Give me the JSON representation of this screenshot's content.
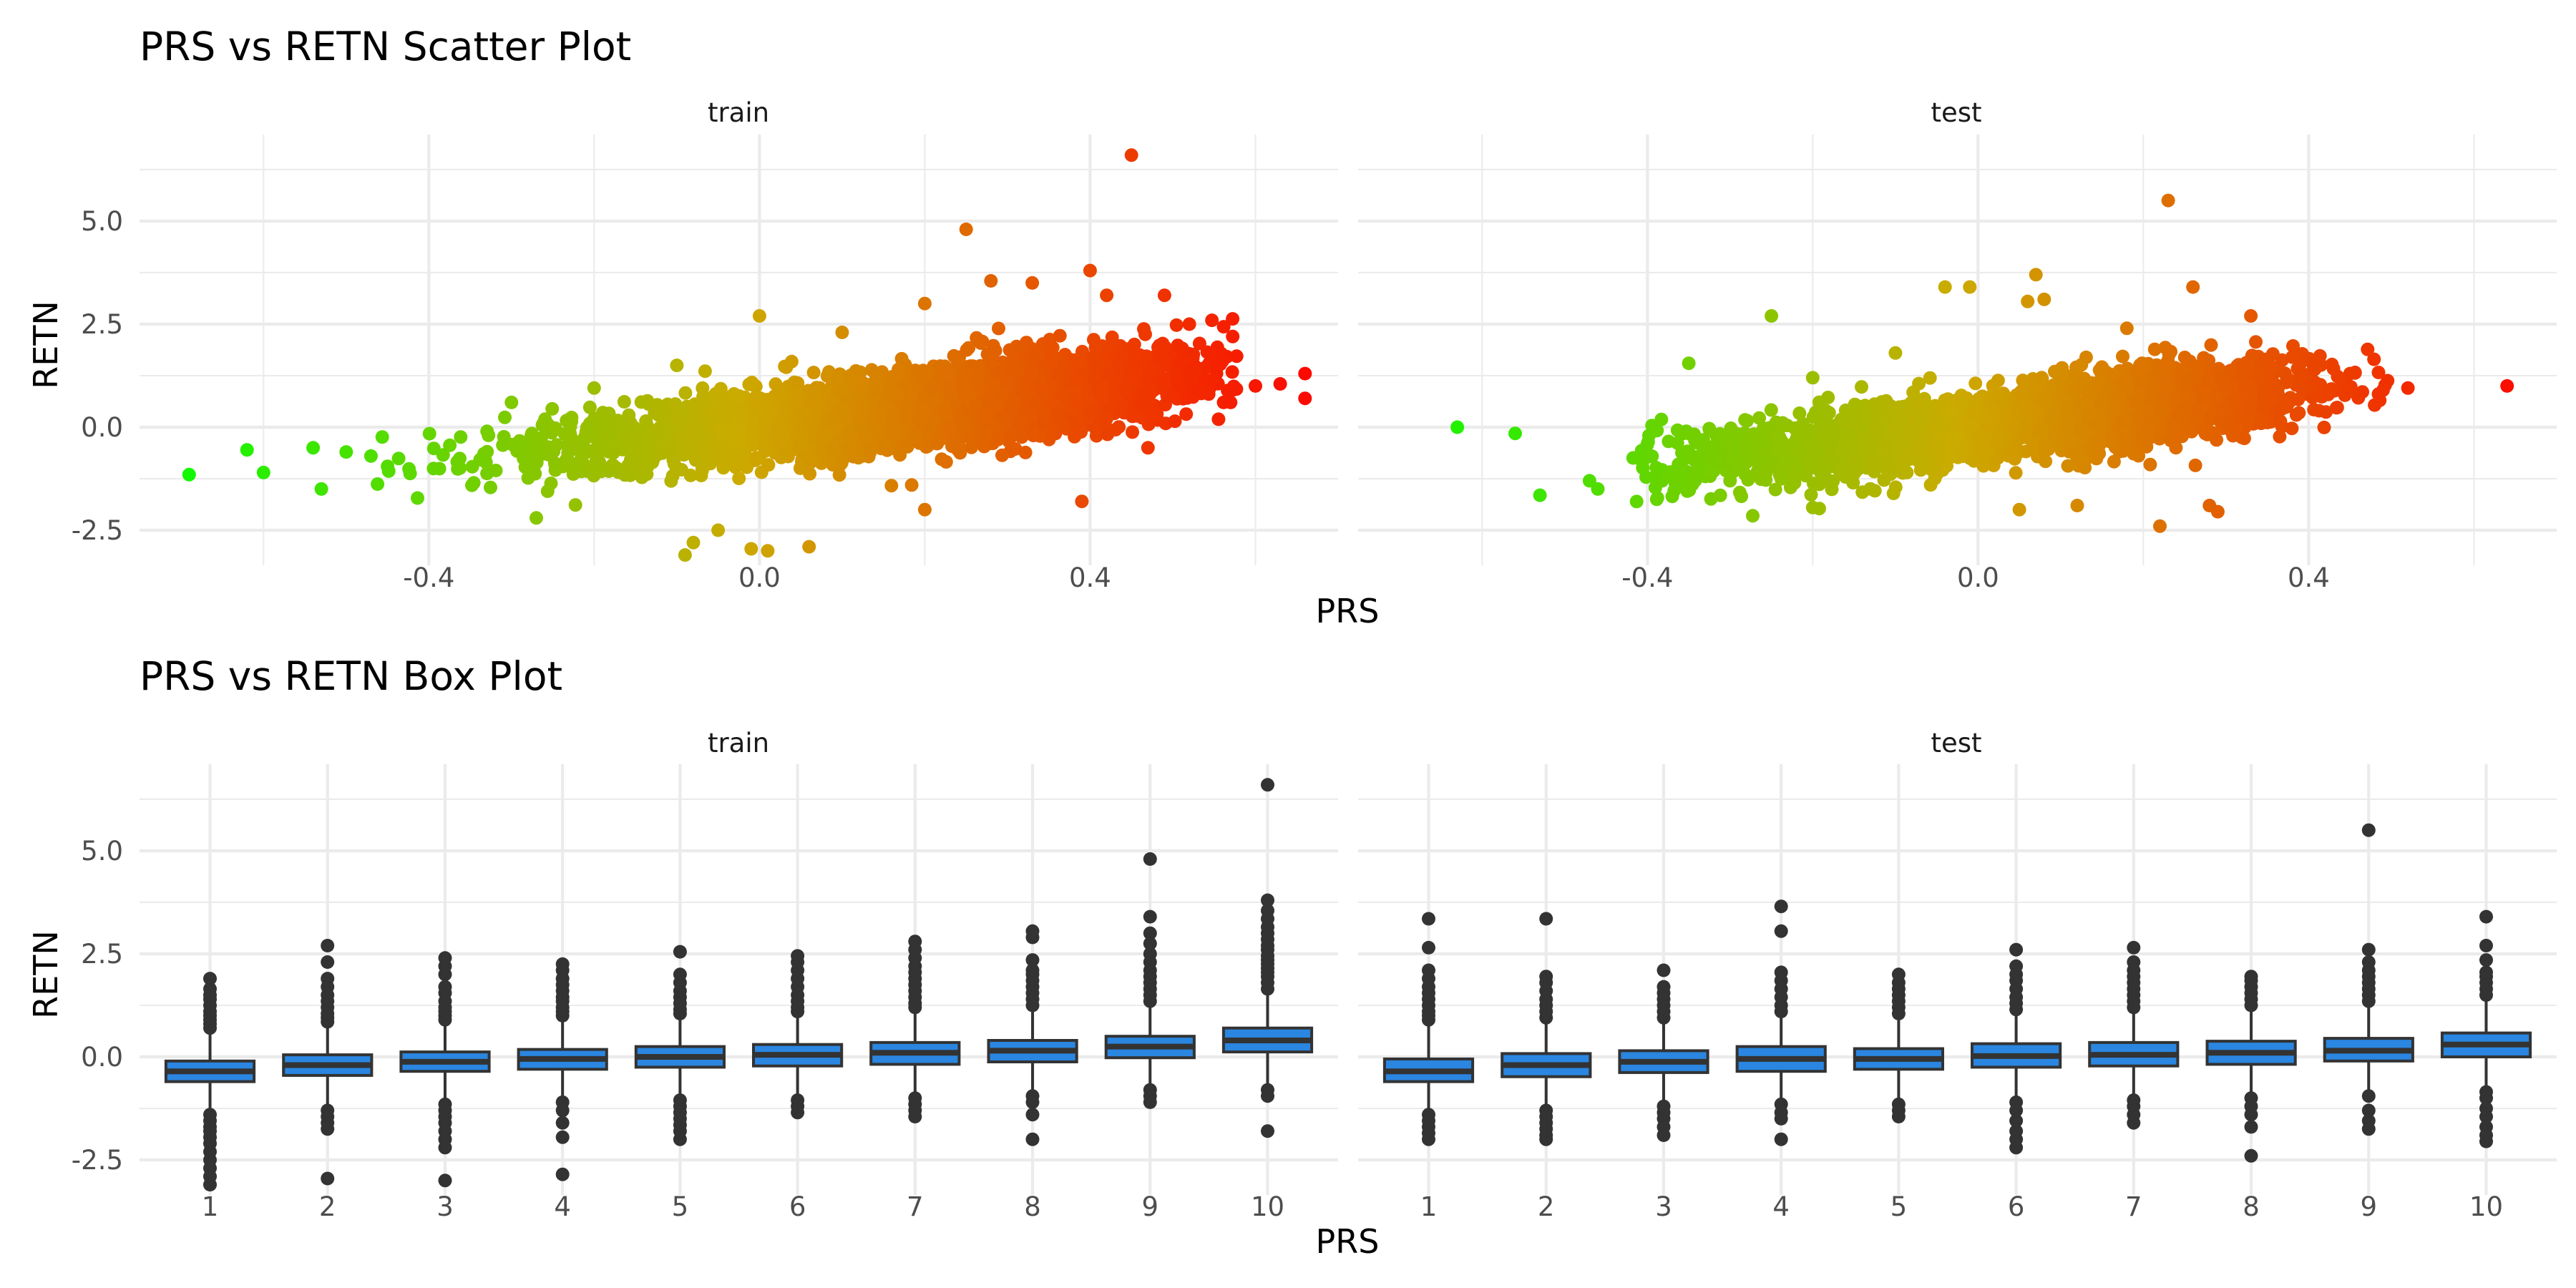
{
  "chart_data": [
    {
      "type": "scatter",
      "title": "PRS vs RETN Scatter Plot",
      "xlabel": "PRS",
      "ylabel": "RETN",
      "xlim": [
        -0.75,
        0.7
      ],
      "ylim": [
        -3.35,
        7.1
      ],
      "x_ticks": [
        -0.4,
        0.0,
        0.4
      ],
      "x_tick_labels": [
        "-0.4",
        "0.0",
        "0.4"
      ],
      "y_ticks": [
        -2.5,
        0.0,
        2.5,
        5.0
      ],
      "y_tick_labels": [
        "-2.5",
        "0.0",
        "2.5",
        "5.0"
      ],
      "grid": true,
      "legend": "none",
      "color_scale": {
        "by": "x",
        "low": "#00ff00",
        "mid": "#ccaa00",
        "high": "#ff0000"
      },
      "trend": {
        "intercept": 0.0,
        "slope": 2.4
      },
      "panels": [
        {
          "name": "train",
          "cloud": {
            "count": 4000,
            "x_min": -0.5,
            "x_max": 0.58,
            "x_peak": 0.25,
            "spread_left": 0.15,
            "spread_right": 0.13,
            "noise_sd": 0.45
          },
          "points": [
            {
              "x": -0.69,
              "y": -1.15
            },
            {
              "x": -0.62,
              "y": -0.55
            },
            {
              "x": -0.6,
              "y": -1.1
            },
            {
              "x": -0.54,
              "y": -0.5
            },
            {
              "x": -0.53,
              "y": -1.5
            },
            {
              "x": -0.5,
              "y": -0.6
            },
            {
              "x": -0.47,
              "y": -0.7
            },
            {
              "x": -0.45,
              "y": -0.95
            },
            {
              "x": -0.3,
              "y": 0.6
            },
            {
              "x": -0.27,
              "y": -2.2
            },
            {
              "x": -0.2,
              "y": 0.95
            },
            {
              "x": -0.1,
              "y": 1.5
            },
            {
              "x": -0.09,
              "y": -3.1
            },
            {
              "x": -0.08,
              "y": -2.8
            },
            {
              "x": -0.05,
              "y": -2.5
            },
            {
              "x": 0.0,
              "y": 2.7
            },
            {
              "x": -0.01,
              "y": -2.95
            },
            {
              "x": 0.01,
              "y": -3.0
            },
            {
              "x": 0.06,
              "y": -2.9
            },
            {
              "x": 0.1,
              "y": 2.3
            },
            {
              "x": 0.2,
              "y": -2.0
            },
            {
              "x": 0.2,
              "y": 3.0
            },
            {
              "x": 0.25,
              "y": 4.8
            },
            {
              "x": 0.28,
              "y": 3.55
            },
            {
              "x": 0.33,
              "y": 3.5
            },
            {
              "x": 0.39,
              "y": -1.8
            },
            {
              "x": 0.4,
              "y": 3.8
            },
            {
              "x": 0.42,
              "y": 3.2
            },
            {
              "x": 0.45,
              "y": 6.6
            },
            {
              "x": 0.47,
              "y": -0.5
            },
            {
              "x": 0.49,
              "y": 3.2
            },
            {
              "x": 0.52,
              "y": 2.5
            },
            {
              "x": 0.52,
              "y": 1.2
            },
            {
              "x": 0.56,
              "y": 1.6
            },
            {
              "x": 0.57,
              "y": 0.6
            },
            {
              "x": 0.6,
              "y": 1.0
            },
            {
              "x": 0.63,
              "y": 1.05
            },
            {
              "x": 0.66,
              "y": 1.3
            },
            {
              "x": 0.66,
              "y": 0.7
            }
          ]
        },
        {
          "name": "test",
          "cloud": {
            "count": 2800,
            "x_min": -0.42,
            "x_max": 0.5,
            "x_peak": 0.1,
            "spread_left": 0.16,
            "spread_right": 0.15,
            "noise_sd": 0.45
          },
          "points": [
            {
              "x": -0.63,
              "y": 0.0
            },
            {
              "x": -0.56,
              "y": -0.15
            },
            {
              "x": -0.53,
              "y": -1.65
            },
            {
              "x": -0.47,
              "y": -1.3
            },
            {
              "x": -0.46,
              "y": -1.5
            },
            {
              "x": -0.35,
              "y": 1.55
            },
            {
              "x": -0.3,
              "y": -1.3
            },
            {
              "x": -0.25,
              "y": 2.7
            },
            {
              "x": -0.2,
              "y": 1.2
            },
            {
              "x": -0.2,
              "y": -1.95
            },
            {
              "x": -0.1,
              "y": 1.8
            },
            {
              "x": -0.04,
              "y": 3.4
            },
            {
              "x": -0.01,
              "y": 3.4
            },
            {
              "x": 0.05,
              "y": -2.0
            },
            {
              "x": 0.07,
              "y": 3.7
            },
            {
              "x": 0.06,
              "y": 3.05
            },
            {
              "x": 0.08,
              "y": 3.1
            },
            {
              "x": 0.12,
              "y": -1.9
            },
            {
              "x": 0.18,
              "y": 2.4
            },
            {
              "x": 0.22,
              "y": -2.4
            },
            {
              "x": 0.23,
              "y": 5.5
            },
            {
              "x": 0.26,
              "y": 3.4
            },
            {
              "x": 0.28,
              "y": -1.9
            },
            {
              "x": 0.29,
              "y": -2.05
            },
            {
              "x": 0.33,
              "y": 2.7
            },
            {
              "x": 0.38,
              "y": 1.7
            },
            {
              "x": 0.45,
              "y": 1.3
            },
            {
              "x": 0.49,
              "y": 0.9
            },
            {
              "x": 0.52,
              "y": 0.95
            },
            {
              "x": 0.64,
              "y": 1.0
            }
          ]
        }
      ]
    },
    {
      "type": "box",
      "title": "PRS vs RETN Box Plot",
      "xlabel": "PRS",
      "ylabel": "RETN",
      "categories": [
        "1",
        "2",
        "3",
        "4",
        "5",
        "6",
        "7",
        "8",
        "9",
        "10"
      ],
      "ylim": [
        -3.35,
        7.1
      ],
      "y_ticks": [
        -2.5,
        0.0,
        2.5,
        5.0
      ],
      "y_tick_labels": [
        "-2.5",
        "0.0",
        "2.5",
        "5.0"
      ],
      "grid": true,
      "box_color": "#2a86e0",
      "line_color": "#333333",
      "panels": [
        {
          "name": "train",
          "boxes": [
            {
              "q1": -0.6,
              "median": -0.35,
              "q3": -0.1,
              "whisker_low": -1.3,
              "whisker_high": 0.6,
              "outliers": [
                0.7,
                0.8,
                0.9,
                1.0,
                1.1,
                1.25,
                1.4,
                1.5,
                1.65,
                1.9,
                -1.4,
                -1.55,
                -1.7,
                -1.8,
                -1.95,
                -2.1,
                -2.3,
                -2.5,
                -2.7,
                -2.9,
                -3.1
              ]
            },
            {
              "q1": -0.45,
              "median": -0.2,
              "q3": 0.05,
              "whisker_low": -1.2,
              "whisker_high": 0.75,
              "outliers": [
                0.85,
                0.95,
                1.05,
                1.2,
                1.35,
                1.5,
                1.7,
                1.9,
                2.3,
                2.7,
                -1.3,
                -1.45,
                -1.6,
                -1.75,
                -2.95
              ]
            },
            {
              "q1": -0.35,
              "median": -0.12,
              "q3": 0.12,
              "whisker_low": -1.05,
              "whisker_high": 0.8,
              "outliers": [
                0.9,
                1.0,
                1.1,
                1.2,
                1.35,
                1.55,
                1.7,
                2.0,
                2.2,
                2.4,
                -1.15,
                -1.3,
                -1.45,
                -1.6,
                -1.8,
                -2.0,
                -2.2,
                -3.0
              ]
            },
            {
              "q1": -0.3,
              "median": -0.05,
              "q3": 0.18,
              "whisker_low": -1.0,
              "whisker_high": 0.9,
              "outliers": [
                1.0,
                1.1,
                1.2,
                1.35,
                1.45,
                1.6,
                1.75,
                1.9,
                2.1,
                2.25,
                -1.1,
                -1.3,
                -1.6,
                -1.95,
                -2.85
              ]
            },
            {
              "q1": -0.25,
              "median": 0.0,
              "q3": 0.25,
              "whisker_low": -0.95,
              "whisker_high": 0.95,
              "outliers": [
                1.05,
                1.15,
                1.3,
                1.45,
                1.6,
                1.8,
                2.0,
                2.55,
                -1.05,
                -1.2,
                -1.35,
                -1.5,
                -1.65,
                -1.8,
                -2.0
              ]
            },
            {
              "q1": -0.22,
              "median": 0.05,
              "q3": 0.3,
              "whisker_low": -0.95,
              "whisker_high": 1.0,
              "outliers": [
                1.1,
                1.2,
                1.35,
                1.5,
                1.7,
                1.9,
                2.1,
                2.3,
                2.45,
                -1.05,
                -1.2,
                -1.35
              ]
            },
            {
              "q1": -0.18,
              "median": 0.1,
              "q3": 0.35,
              "whisker_low": -0.9,
              "whisker_high": 1.1,
              "outliers": [
                1.2,
                1.3,
                1.45,
                1.6,
                1.75,
                1.9,
                2.05,
                2.2,
                2.4,
                2.6,
                2.8,
                -1.0,
                -1.15,
                -1.3,
                -1.45
              ]
            },
            {
              "q1": -0.12,
              "median": 0.15,
              "q3": 0.4,
              "whisker_low": -0.85,
              "whisker_high": 1.15,
              "outliers": [
                1.25,
                1.4,
                1.55,
                1.7,
                1.85,
                2.0,
                2.1,
                2.35,
                2.9,
                3.05,
                -0.95,
                -1.1,
                -1.4,
                -2.0
              ]
            },
            {
              "q1": -0.02,
              "median": 0.25,
              "q3": 0.5,
              "whisker_low": -0.7,
              "whisker_high": 1.25,
              "outliers": [
                1.35,
                1.5,
                1.65,
                1.8,
                1.95,
                2.1,
                2.3,
                2.5,
                2.75,
                3.0,
                3.4,
                4.8,
                -0.8,
                -0.95,
                -1.1
              ]
            },
            {
              "q1": 0.12,
              "median": 0.4,
              "q3": 0.7,
              "whisker_low": -0.65,
              "whisker_high": 1.55,
              "outliers": [
                1.65,
                1.8,
                1.95,
                2.05,
                2.15,
                2.25,
                2.35,
                2.45,
                2.6,
                2.7,
                2.85,
                3.0,
                3.15,
                3.35,
                3.55,
                3.8,
                6.6,
                -0.8,
                -0.95,
                -1.8
              ]
            }
          ]
        },
        {
          "name": "test",
          "boxes": [
            {
              "q1": -0.6,
              "median": -0.35,
              "q3": -0.05,
              "whisker_low": -1.3,
              "whisker_high": 0.8,
              "outliers": [
                0.9,
                1.0,
                1.1,
                1.25,
                1.4,
                1.55,
                1.7,
                1.9,
                2.1,
                2.65,
                3.35,
                -1.4,
                -1.55,
                -1.7,
                -1.85,
                -2.0
              ]
            },
            {
              "q1": -0.48,
              "median": -0.2,
              "q3": 0.08,
              "whisker_low": -1.2,
              "whisker_high": 0.85,
              "outliers": [
                0.95,
                1.1,
                1.25,
                1.4,
                1.6,
                1.8,
                1.95,
                3.35,
                -1.3,
                -1.45,
                -1.6,
                -1.75,
                -1.9,
                -2.0
              ]
            },
            {
              "q1": -0.38,
              "median": -0.12,
              "q3": 0.15,
              "whisker_low": -1.1,
              "whisker_high": 0.85,
              "outliers": [
                0.95,
                1.1,
                1.25,
                1.4,
                1.55,
                1.7,
                2.1,
                -1.2,
                -1.35,
                -1.5,
                -1.7,
                -1.9
              ]
            },
            {
              "q1": -0.35,
              "median": -0.05,
              "q3": 0.25,
              "whisker_low": -1.05,
              "whisker_high": 1.0,
              "outliers": [
                1.1,
                1.25,
                1.45,
                1.65,
                1.85,
                2.05,
                3.05,
                3.65,
                -1.15,
                -1.35,
                -1.5,
                -2.0
              ]
            },
            {
              "q1": -0.3,
              "median": -0.05,
              "q3": 0.2,
              "whisker_low": -1.05,
              "whisker_high": 0.95,
              "outliers": [
                1.05,
                1.2,
                1.35,
                1.5,
                1.65,
                1.8,
                2.0,
                -1.15,
                -1.3,
                -1.45
              ]
            },
            {
              "q1": -0.25,
              "median": 0.02,
              "q3": 0.32,
              "whisker_low": -1.0,
              "whisker_high": 1.05,
              "outliers": [
                1.15,
                1.3,
                1.45,
                1.65,
                1.85,
                2.0,
                2.2,
                2.6,
                -1.1,
                -1.3,
                -1.55,
                -1.8,
                -2.0,
                -2.2
              ]
            },
            {
              "q1": -0.22,
              "median": 0.05,
              "q3": 0.35,
              "whisker_low": -0.95,
              "whisker_high": 1.1,
              "outliers": [
                1.2,
                1.35,
                1.5,
                1.65,
                1.8,
                1.95,
                2.1,
                2.3,
                2.65,
                -1.05,
                -1.2,
                -1.4,
                -1.6
              ]
            },
            {
              "q1": -0.18,
              "median": 0.1,
              "q3": 0.38,
              "whisker_low": -0.9,
              "whisker_high": 1.15,
              "outliers": [
                1.25,
                1.4,
                1.55,
                1.7,
                1.85,
                1.95,
                -1.0,
                -1.2,
                -1.4,
                -1.7,
                -2.4
              ]
            },
            {
              "q1": -0.1,
              "median": 0.15,
              "q3": 0.45,
              "whisker_low": -0.85,
              "whisker_high": 1.25,
              "outliers": [
                1.35,
                1.5,
                1.65,
                1.8,
                1.95,
                2.1,
                2.3,
                2.6,
                5.5,
                -0.95,
                -1.3,
                -1.55,
                -1.75
              ]
            },
            {
              "q1": 0.0,
              "median": 0.3,
              "q3": 0.58,
              "whisker_low": -0.75,
              "whisker_high": 1.4,
              "outliers": [
                1.5,
                1.65,
                1.8,
                1.95,
                2.05,
                2.35,
                2.7,
                3.4,
                -0.85,
                -1.0,
                -1.25,
                -1.45,
                -1.7,
                -1.9,
                -2.05
              ]
            }
          ]
        }
      ]
    }
  ]
}
